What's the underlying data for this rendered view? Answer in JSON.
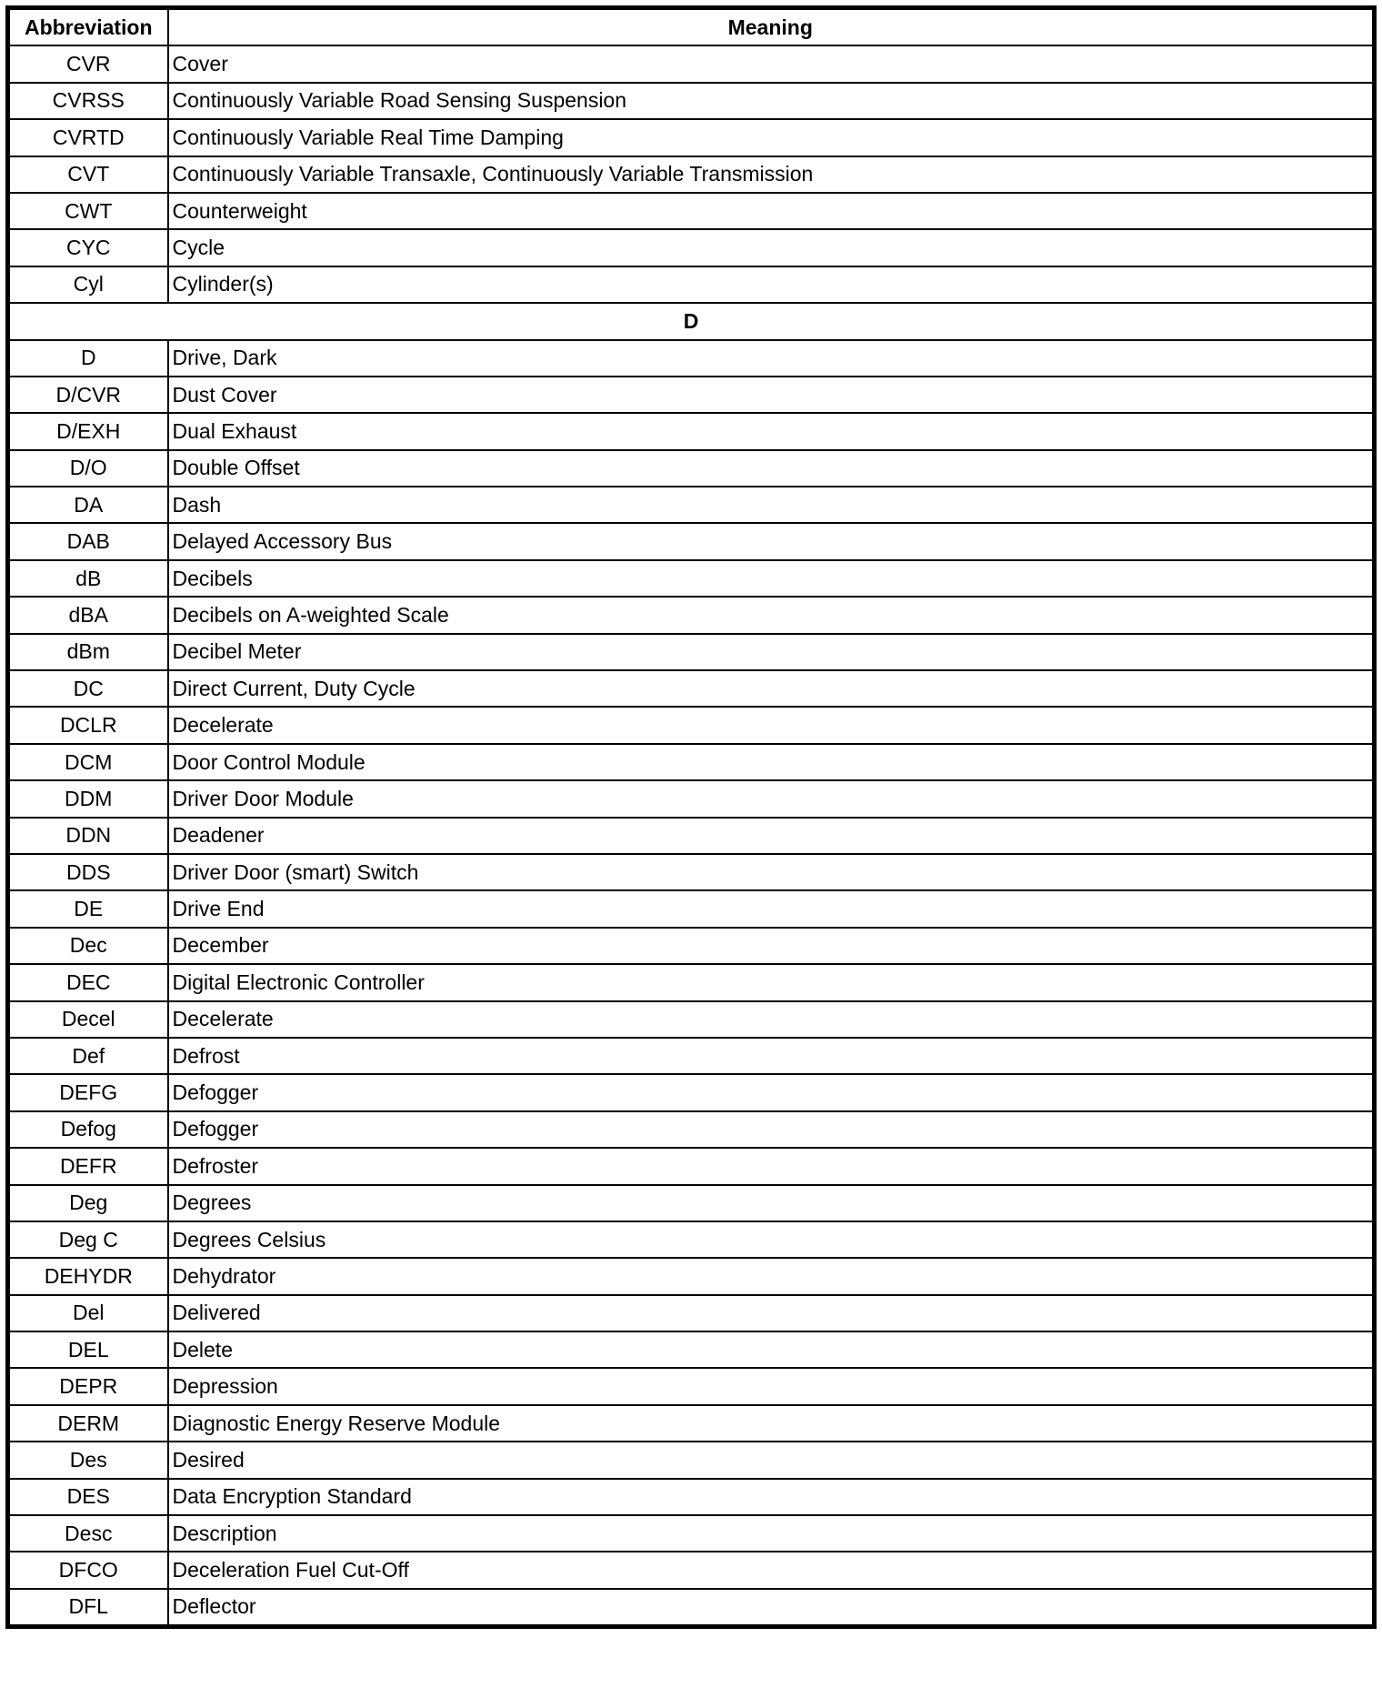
{
  "headers": {
    "abbreviation": "Abbreviation",
    "meaning": "Meaning"
  },
  "groups": [
    {
      "section": "",
      "rows": [
        [
          "CVR",
          "Cover"
        ],
        [
          "CVRSS",
          "Continuously Variable Road Sensing Suspension"
        ],
        [
          "CVRTD",
          "Continuously Variable Real Time Damping"
        ],
        [
          "CVT",
          "Continuously Variable Transaxle, Continuously Variable Transmission"
        ],
        [
          "CWT",
          "Counterweight"
        ],
        [
          "CYC",
          "Cycle"
        ],
        [
          "Cyl",
          "Cylinder(s)"
        ]
      ]
    },
    {
      "section": "D",
      "rows": [
        [
          "D",
          "Drive, Dark"
        ],
        [
          "D/CVR",
          "Dust Cover"
        ],
        [
          "D/EXH",
          "Dual Exhaust"
        ],
        [
          "D/O",
          "Double Offset"
        ],
        [
          "DA",
          "Dash"
        ],
        [
          "DAB",
          "Delayed Accessory Bus"
        ],
        [
          "dB",
          "Decibels"
        ],
        [
          "dBA",
          "Decibels on A-weighted Scale"
        ],
        [
          "dBm",
          "Decibel Meter"
        ],
        [
          "DC",
          "Direct Current, Duty Cycle"
        ],
        [
          "DCLR",
          "Decelerate"
        ],
        [
          "DCM",
          "Door Control Module"
        ],
        [
          "DDM",
          "Driver Door Module"
        ],
        [
          "DDN",
          "Deadener"
        ],
        [
          "DDS",
          "Driver Door (smart) Switch"
        ],
        [
          "DE",
          "Drive End"
        ],
        [
          "Dec",
          "December"
        ],
        [
          "DEC",
          "Digital Electronic Controller"
        ],
        [
          "Decel",
          "Decelerate"
        ],
        [
          "Def",
          "Defrost"
        ],
        [
          "DEFG",
          "Defogger"
        ],
        [
          "Defog",
          "Defogger"
        ],
        [
          "DEFR",
          "Defroster"
        ],
        [
          "Deg",
          "Degrees"
        ],
        [
          "Deg C",
          "Degrees Celsius"
        ],
        [
          "DEHYDR",
          "Dehydrator"
        ],
        [
          "Del",
          "Delivered"
        ],
        [
          "DEL",
          "Delete"
        ],
        [
          "DEPR",
          "Depression"
        ],
        [
          "DERM",
          "Diagnostic Energy Reserve Module"
        ],
        [
          "Des",
          "Desired"
        ],
        [
          "DES",
          "Data Encryption Standard"
        ],
        [
          "Desc",
          "Description"
        ],
        [
          "DFCO",
          "Deceleration Fuel Cut-Off"
        ],
        [
          "DFL",
          "Deflector"
        ]
      ]
    }
  ]
}
